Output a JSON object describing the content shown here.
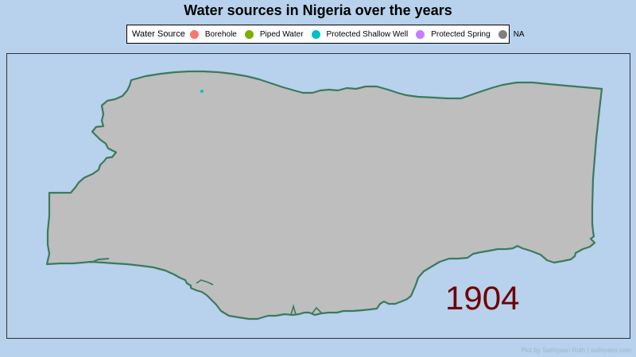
{
  "title": "Water sources in Nigeria over the years",
  "legend": {
    "title": "Water Source",
    "items": [
      {
        "label": "Borehole",
        "color": "#f8766d"
      },
      {
        "label": "Piped Water",
        "color": "#7cae00"
      },
      {
        "label": "Protected Shallow Well",
        "color": "#00bfc4"
      },
      {
        "label": "Protected Spring",
        "color": "#c77cff"
      },
      {
        "label": "NA",
        "color": "#7f7f7f"
      }
    ]
  },
  "year": "1904",
  "credit": "Plot by Sathiyasri Ruth | sathiyasri.com",
  "map": {
    "land_color": "#bebebe",
    "border_color": "#3a7a5e",
    "ocean_color": "#b8d1ec",
    "points": [
      {
        "source": "Protected Shallow Well",
        "color": "#00bfc4"
      }
    ]
  }
}
